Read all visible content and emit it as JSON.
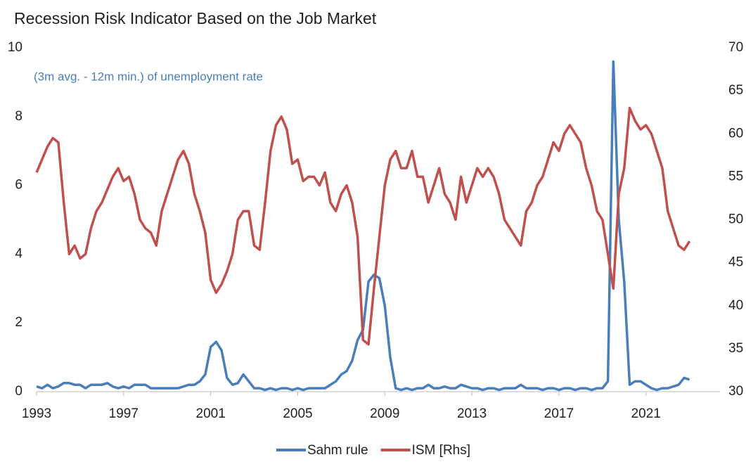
{
  "chart_data": {
    "type": "line",
    "title": "Recession Risk Indicator Based on the Job Market",
    "annotation": "(3m avg. - 12m min.) of unemployment rate",
    "x": [
      1993,
      1993.25,
      1993.5,
      1993.75,
      1994,
      1994.25,
      1994.5,
      1994.75,
      1995,
      1995.25,
      1995.5,
      1995.75,
      1996,
      1996.25,
      1996.5,
      1996.75,
      1997,
      1997.25,
      1997.5,
      1997.75,
      1998,
      1998.25,
      1998.5,
      1998.75,
      1999,
      1999.25,
      1999.5,
      1999.75,
      2000,
      2000.25,
      2000.5,
      2000.75,
      2001,
      2001.25,
      2001.5,
      2001.75,
      2002,
      2002.25,
      2002.5,
      2002.75,
      2003,
      2003.25,
      2003.5,
      2003.75,
      2004,
      2004.25,
      2004.5,
      2004.75,
      2005,
      2005.25,
      2005.5,
      2005.75,
      2006,
      2006.25,
      2006.5,
      2006.75,
      2007,
      2007.25,
      2007.5,
      2007.75,
      2008,
      2008.25,
      2008.5,
      2008.75,
      2009,
      2009.25,
      2009.5,
      2009.75,
      2010,
      2010.25,
      2010.5,
      2010.75,
      2011,
      2011.25,
      2011.5,
      2011.75,
      2012,
      2012.25,
      2012.5,
      2012.75,
      2013,
      2013.25,
      2013.5,
      2013.75,
      2014,
      2014.25,
      2014.5,
      2014.75,
      2015,
      2015.25,
      2015.5,
      2015.75,
      2016,
      2016.25,
      2016.5,
      2016.75,
      2017,
      2017.25,
      2017.5,
      2017.75,
      2018,
      2018.25,
      2018.5,
      2018.75,
      2019,
      2019.25,
      2019.5,
      2019.75,
      2020,
      2020.25,
      2020.5,
      2020.75,
      2021,
      2021.25,
      2021.5,
      2021.75,
      2022,
      2022.25,
      2022.5,
      2022.75,
      2023
    ],
    "series": [
      {
        "name": "Sahm rule",
        "color": "#4a7ebb",
        "axis": "y",
        "values": [
          0.15,
          0.1,
          0.2,
          0.1,
          0.15,
          0.25,
          0.25,
          0.2,
          0.2,
          0.1,
          0.2,
          0.2,
          0.2,
          0.25,
          0.15,
          0.1,
          0.15,
          0.1,
          0.2,
          0.2,
          0.2,
          0.1,
          0.1,
          0.1,
          0.1,
          0.1,
          0.1,
          0.15,
          0.2,
          0.2,
          0.3,
          0.5,
          1.3,
          1.45,
          1.2,
          0.4,
          0.2,
          0.25,
          0.5,
          0.3,
          0.1,
          0.1,
          0.05,
          0.1,
          0.05,
          0.1,
          0.1,
          0.05,
          0.1,
          0.05,
          0.1,
          0.1,
          0.1,
          0.1,
          0.2,
          0.3,
          0.5,
          0.6,
          0.9,
          1.5,
          1.8,
          3.2,
          3.4,
          3.3,
          2.5,
          1.0,
          0.1,
          0.05,
          0.1,
          0.05,
          0.1,
          0.1,
          0.2,
          0.1,
          0.1,
          0.15,
          0.1,
          0.1,
          0.2,
          0.15,
          0.1,
          0.1,
          0.05,
          0.1,
          0.1,
          0.05,
          0.1,
          0.1,
          0.1,
          0.2,
          0.1,
          0.1,
          0.1,
          0.05,
          0.1,
          0.1,
          0.05,
          0.1,
          0.1,
          0.05,
          0.1,
          0.1,
          0.05,
          0.1,
          0.1,
          0.3,
          9.6,
          5.0,
          3.2,
          0.2,
          0.3,
          0.3,
          0.2,
          0.1,
          0.05,
          0.1,
          0.1,
          0.15,
          0.2,
          0.4,
          0.35
        ]
      },
      {
        "name": "ISM [Rhs]",
        "color": "#c0504d",
        "axis": "y2",
        "values": [
          55.5,
          57,
          58.5,
          59.5,
          59,
          52,
          46,
          47,
          45.5,
          46,
          49,
          51,
          52,
          53.5,
          55,
          56,
          54.5,
          55,
          53,
          50,
          49,
          48.5,
          47,
          51,
          53,
          55,
          57,
          58,
          56.5,
          53,
          51,
          48.5,
          43,
          41.5,
          42.5,
          44,
          46,
          50,
          51,
          51,
          47,
          46.5,
          52,
          58,
          61,
          62,
          60.5,
          56.5,
          57,
          54.5,
          55,
          55,
          54,
          55.5,
          52,
          51,
          53,
          54,
          52,
          48,
          36,
          35.5,
          42,
          48,
          54,
          57,
          58,
          56,
          56,
          58,
          55,
          55,
          52,
          54,
          56,
          53,
          52,
          50,
          55,
          52,
          54,
          56,
          55,
          56,
          55,
          53,
          50,
          49,
          48,
          47,
          51,
          52,
          54,
          55,
          57,
          59,
          58,
          60,
          61,
          60,
          59,
          56,
          54,
          51,
          50,
          46,
          42,
          53,
          56,
          63,
          61.5,
          60.5,
          61,
          60,
          58,
          56,
          51,
          49,
          47,
          46.5,
          47.5
        ]
      }
    ],
    "xlim": [
      1993,
      2024.4
    ],
    "xticks": [
      1993,
      1997,
      2001,
      2005,
      2009,
      2013,
      2017,
      2021
    ],
    "ylim": [
      0,
      10
    ],
    "yticks": [
      0,
      2,
      4,
      6,
      8,
      10
    ],
    "y2lim": [
      30,
      70
    ],
    "y2ticks": [
      30,
      35,
      40,
      45,
      50,
      55,
      60,
      65,
      70
    ],
    "grid": false
  }
}
